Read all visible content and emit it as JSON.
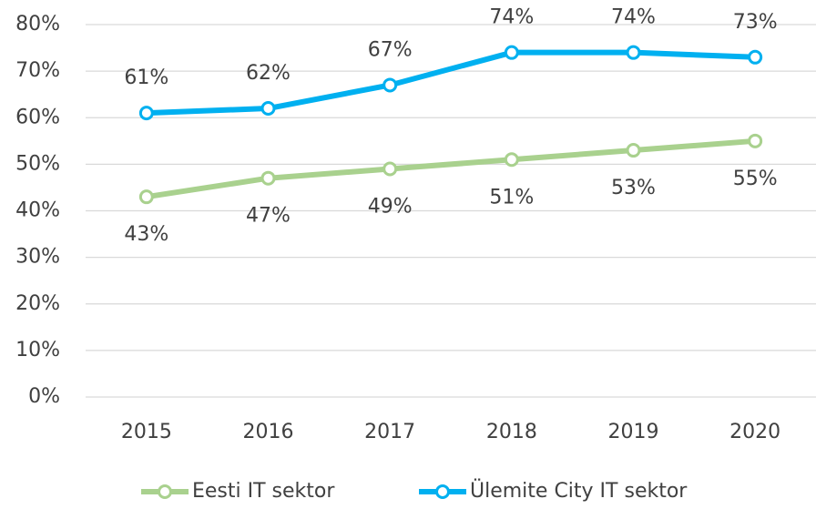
{
  "chart_data": {
    "type": "line",
    "categories": [
      "2015",
      "2016",
      "2017",
      "2018",
      "2019",
      "2020"
    ],
    "series": [
      {
        "name": "Eesti IT sektor",
        "color": "#a9d18e",
        "values": [
          43,
          47,
          49,
          51,
          53,
          55
        ],
        "value_labels": [
          "43%",
          "47%",
          "49%",
          "51%",
          "53%",
          "55%"
        ]
      },
      {
        "name": "Ülemite City IT sektor",
        "color": "#00b0f0",
        "values": [
          61,
          62,
          67,
          74,
          74,
          73
        ],
        "value_labels": [
          "61%",
          "62%",
          "67%",
          "74%",
          "74%",
          "73%"
        ]
      }
    ],
    "ylim": [
      0,
      80
    ],
    "yticks": [
      {
        "value": 0,
        "label": "0%"
      },
      {
        "value": 10,
        "label": "10%"
      },
      {
        "value": 20,
        "label": "20%"
      },
      {
        "value": 30,
        "label": "30%"
      },
      {
        "value": 40,
        "label": "40%"
      },
      {
        "value": 50,
        "label": "50%"
      },
      {
        "value": 60,
        "label": "60%"
      },
      {
        "value": 70,
        "label": "70%"
      },
      {
        "value": 80,
        "label": "80%"
      }
    ],
    "grid": true,
    "legend": "bottom"
  }
}
